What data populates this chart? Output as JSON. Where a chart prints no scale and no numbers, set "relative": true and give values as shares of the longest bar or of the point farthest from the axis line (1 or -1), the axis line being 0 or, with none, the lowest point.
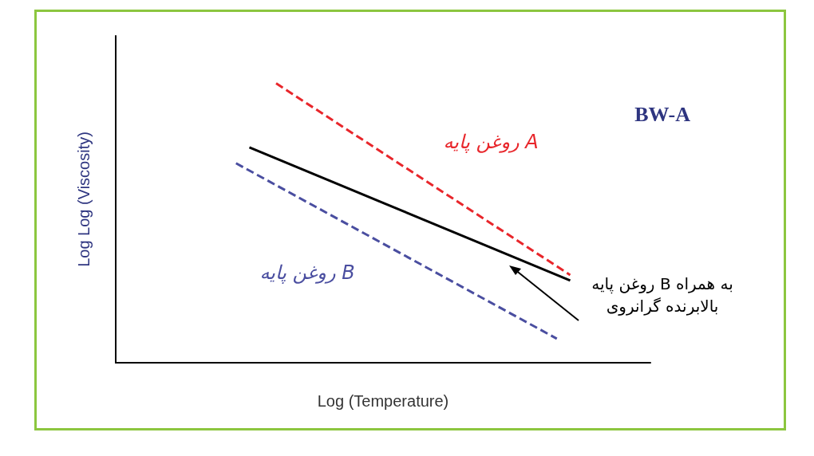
{
  "chart_data": {
    "type": "line",
    "title": "BW-A",
    "xlabel": "Log (Temperature)",
    "ylabel": "Log Log (Viscosity)",
    "relative": true,
    "marker": "none",
    "grid": false,
    "categories": [
      null,
      null,
      null,
      null,
      null,
      null,
      null,
      null,
      null,
      null,
      null,
      null,
      null,
      null,
      null,
      null,
      null,
      null,
      null,
      null,
      null,
      null,
      null,
      null,
      null,
      null,
      null,
      null,
      null,
      null,
      null,
      null,
      null,
      null,
      null,
      null,
      null,
      null,
      null,
      null,
      null
    ],
    "series": [
      {
        "name": "روغن پایه A",
        "color": "#e8262b",
        "line_style": "dashed",
        "values": [
          null,
          null,
          null,
          null,
          null,
          null,
          null,
          null,
          null,
          null,
          null,
          null,
          1,
          null,
          null,
          null,
          null,
          null,
          null,
          null,
          null,
          null,
          null,
          null,
          null,
          null,
          null,
          null,
          null,
          null,
          null,
          null,
          null,
          null,
          0.314,
          null,
          null,
          null,
          null,
          null,
          null
        ]
      },
      {
        "name": "روغن پایه B به همراه\nبالابرنده گرانروی",
        "color": "#000000",
        "line_style": "solid",
        "values": [
          null,
          null,
          null,
          null,
          null,
          null,
          null,
          null,
          null,
          null,
          0.771,
          null,
          null,
          null,
          null,
          null,
          null,
          null,
          null,
          null,
          null,
          null,
          null,
          null,
          null,
          null,
          null,
          null,
          null,
          null,
          null,
          null,
          null,
          null,
          0.294,
          null,
          null,
          null,
          null,
          null,
          null
        ]
      },
      {
        "name": "روغن پایه B",
        "color": "#4a4ea0",
        "line_style": "dashed",
        "values": [
          null,
          null,
          null,
          null,
          null,
          null,
          null,
          null,
          null,
          0.714,
          null,
          null,
          null,
          null,
          null,
          null,
          null,
          null,
          null,
          null,
          null,
          null,
          null,
          null,
          null,
          null,
          null,
          null,
          null,
          null,
          null,
          null,
          null,
          0.086,
          null,
          null,
          null,
          null,
          null,
          null,
          null
        ]
      }
    ]
  }
}
